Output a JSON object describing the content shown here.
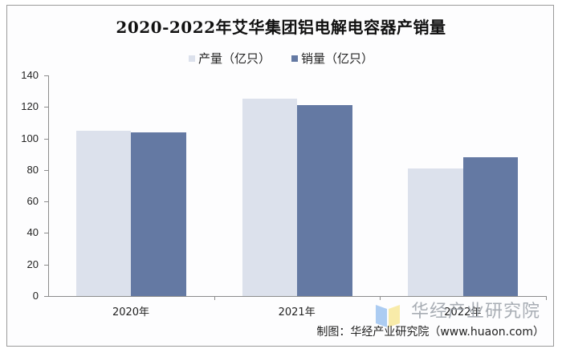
{
  "chart_data": {
    "type": "bar",
    "title": "2020-2022年艾华集团铝电解电容器产销量",
    "categories": [
      "2020年",
      "2021年",
      "2022年"
    ],
    "series": [
      {
        "name": "产量（亿只）",
        "color": "#dce1ec",
        "values": [
          105,
          125,
          81
        ]
      },
      {
        "name": "销量（亿只）",
        "color": "#6479a3",
        "values": [
          104,
          121,
          88
        ]
      }
    ],
    "xlabel": "",
    "ylabel": "",
    "ylim": [
      0,
      140
    ],
    "yticks": [
      0,
      20,
      40,
      60,
      80,
      100,
      120,
      140
    ],
    "grid": false,
    "legend_position": "top"
  },
  "legend": {
    "items": [
      {
        "label": "产量（亿只）",
        "color": "#dce1ec"
      },
      {
        "label": "销量（亿只）",
        "color": "#6479a3"
      }
    ]
  },
  "yaxis": {
    "labels": [
      "0",
      "20",
      "40",
      "60",
      "80",
      "100",
      "120",
      "140"
    ]
  },
  "xaxis": {
    "labels": [
      "2020年",
      "2021年",
      "2022年"
    ]
  },
  "watermark": {
    "text": "华经产业研究院"
  },
  "source": {
    "text": "制图：华经产业研究院（www.huaon.com）"
  }
}
